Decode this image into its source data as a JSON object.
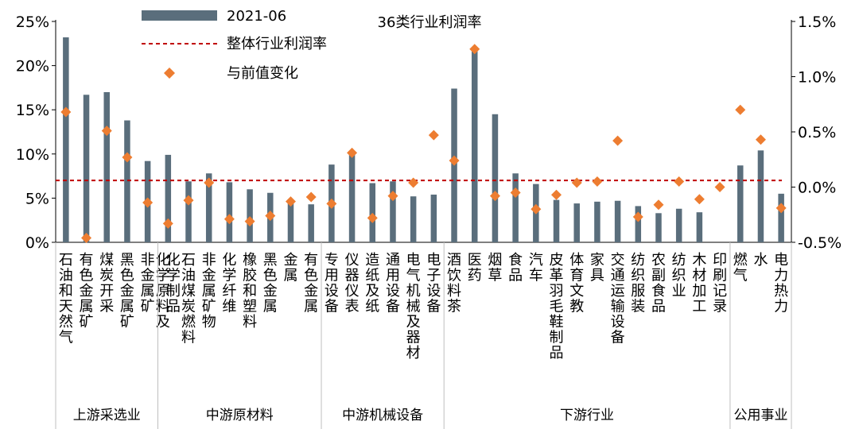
{
  "chart_data": {
    "type": "bar",
    "title": "36类行业利润率",
    "legend": {
      "placement": "top-left",
      "entries": [
        "2021-06",
        "整体行业利润率",
        "与前值变化"
      ]
    },
    "y_left": {
      "ticks": [
        "0%",
        "5%",
        "10%",
        "15%",
        "20%",
        "25%"
      ],
      "ylim": [
        0,
        25
      ]
    },
    "y_right": {
      "ticks": [
        "-0.5%",
        "0.0%",
        "0.5%",
        "1.0%",
        "1.5%"
      ],
      "ylim": [
        -0.5,
        1.5
      ]
    },
    "categories": [
      "石油和天然气",
      "有色金属矿",
      "煤炭开采",
      "黑色金属矿",
      "非金属矿",
      "化学原料及化学制品",
      "石油煤炭燃料",
      "非金属矿物",
      "化学纤维",
      "橡胶和塑料",
      "黑色金属",
      "金属",
      "有色金属",
      "专用设备",
      "仪器仪表",
      "造纸及纸",
      "通用设备",
      "电气机械及器材",
      "电子设备",
      "酒饮料茶",
      "医药",
      "烟草",
      "食品",
      "汽车",
      "皮革羽毛鞋制品",
      "体育文教",
      "家具",
      "交通运输设备",
      "纺织服装",
      "农副食品",
      "纺织业",
      "木材加工",
      "印刷记录",
      "燃气",
      "水",
      "电力热力"
    ],
    "series": [
      {
        "name": "2021-06",
        "axis": "left",
        "values": [
          23.2,
          16.7,
          17.0,
          13.8,
          9.2,
          9.9,
          6.9,
          7.8,
          6.8,
          6.0,
          5.6,
          4.7,
          4.3,
          8.8,
          10.0,
          6.7,
          6.9,
          5.2,
          5.4,
          17.4,
          22.0,
          14.5,
          7.8,
          6.6,
          4.8,
          4.4,
          4.6,
          4.7,
          4.1,
          3.3,
          3.8,
          3.4,
          0.0,
          8.7,
          10.4,
          5.5
        ]
      },
      {
        "name": "整体行业利润率",
        "axis": "left",
        "value": 7.0
      },
      {
        "name": "与前值变化",
        "axis": "right",
        "values": [
          0.68,
          -0.46,
          0.51,
          0.27,
          -0.14,
          -0.33,
          -0.12,
          0.04,
          -0.29,
          -0.31,
          -0.26,
          -0.13,
          -0.09,
          -0.15,
          0.31,
          -0.28,
          -0.08,
          0.04,
          0.47,
          0.24,
          1.25,
          -0.08,
          -0.05,
          -0.2,
          -0.07,
          0.04,
          0.05,
          0.42,
          -0.27,
          -0.16,
          0.05,
          -0.11,
          0.0,
          0.7,
          0.43,
          -0.19
        ]
      }
    ],
    "groups": [
      {
        "label": "上游采选业",
        "count": 5
      },
      {
        "label": "中游原材料",
        "count": 8
      },
      {
        "label": "中游机械设备",
        "count": 6
      },
      {
        "label": "下游行业",
        "count": 14
      },
      {
        "label": "公用事业",
        "count": 3
      }
    ],
    "colors": {
      "bar": "#5a6e7c",
      "line": "#c00000",
      "marker": "#ed7d31",
      "axis": "#000000",
      "separator": "#bfbfbf"
    }
  }
}
